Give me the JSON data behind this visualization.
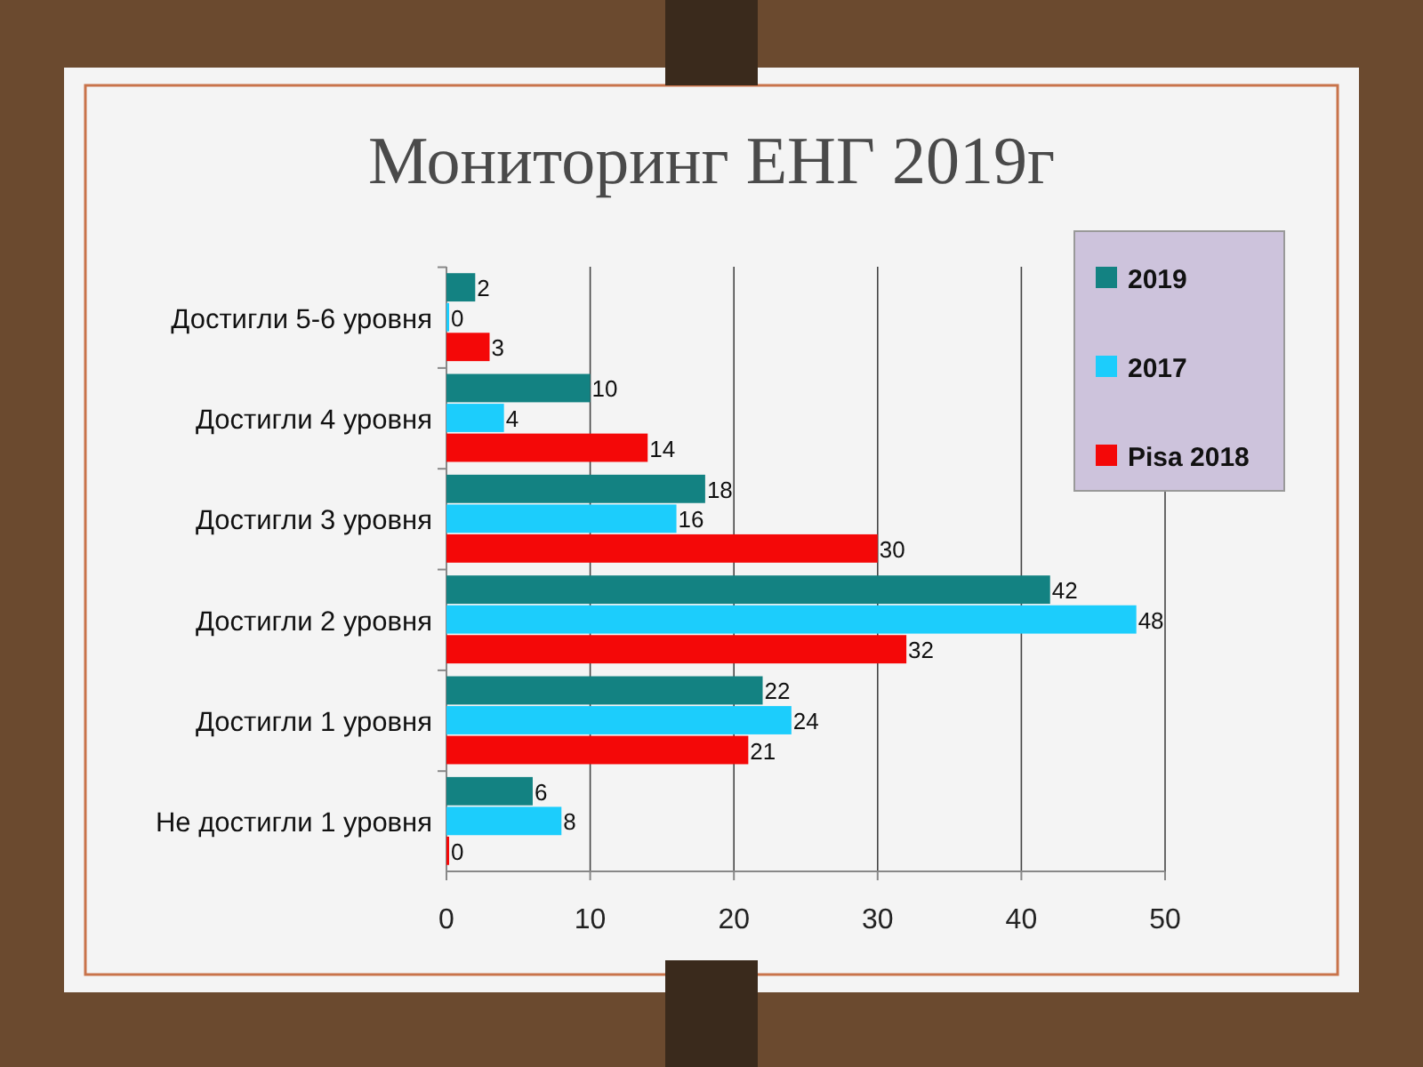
{
  "chart_data": {
    "type": "bar",
    "orientation": "horizontal",
    "title": "Мониторинг ЕНГ 2019г",
    "categories": [
      "Достигли 5-6 уровня",
      "Достигли  4 уровня",
      "Достигли 3 уровня",
      "Достигли 2 уровня",
      "Достигли 1 уровня",
      "Не достигли 1 уровня"
    ],
    "series": [
      {
        "name": "2019",
        "color": "#138282",
        "values": [
          2,
          10,
          18,
          42,
          22,
          6
        ]
      },
      {
        "name": "2017",
        "color": "#1ccdfc",
        "values": [
          0,
          4,
          16,
          48,
          24,
          8
        ]
      },
      {
        "name": "Pisa 2018",
        "color": "#f40808",
        "values": [
          3,
          14,
          30,
          32,
          21,
          0
        ]
      }
    ],
    "xlim": [
      0,
      50
    ],
    "xticks": [
      0,
      10,
      20,
      30,
      40,
      50
    ],
    "grid": "x",
    "legend": "top right",
    "data_labels": true
  }
}
